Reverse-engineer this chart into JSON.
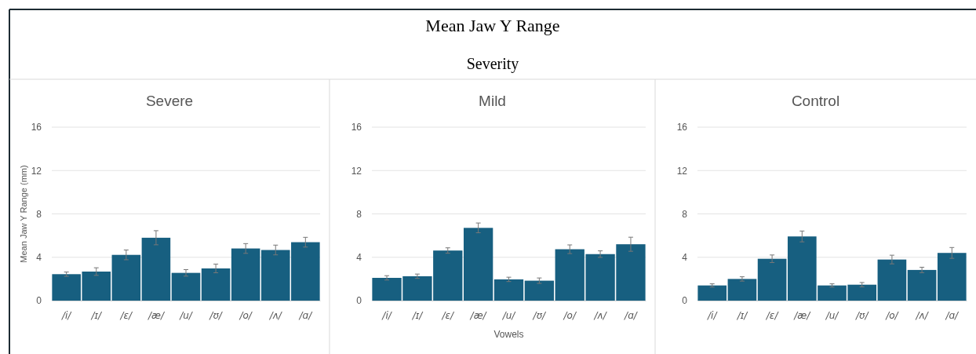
{
  "chart_data": [
    {
      "type": "other",
      "title": "Mean Jaw Y Range",
      "subtitle": "Severity"
    },
    {
      "type": "bar",
      "title": "Severe",
      "ylabel": "Mean Jaw Y Range (mm)",
      "categories": [
        "/i/",
        "/ɪ/",
        "/ɛ/",
        "/æ/",
        "/u/",
        "/ʊ/",
        "/o/",
        "/ʌ/",
        "/ɑ/"
      ],
      "color": "#175f80",
      "values": [
        2.44,
        2.68,
        4.22,
        5.8,
        2.56,
        2.97,
        4.81,
        4.67,
        5.39
      ],
      "errors": [
        0.2,
        0.35,
        0.45,
        0.65,
        0.3,
        0.4,
        0.45,
        0.45,
        0.45
      ],
      "ylim": [
        0,
        16
      ],
      "yticks": [
        0,
        4,
        8,
        12,
        16
      ],
      "grid": "y"
    },
    {
      "type": "bar",
      "title": "Mild",
      "xlabel": "Vowels",
      "categories": [
        "/i/",
        "/ɪ/",
        "/ɛ/",
        "/æ/",
        "/u/",
        "/ʊ/",
        "/o/",
        "/ʌ/",
        "/ɑ/"
      ],
      "color": "#175f80",
      "values": [
        2.1,
        2.25,
        4.62,
        6.71,
        1.96,
        1.84,
        4.74,
        4.29,
        5.2
      ],
      "errors": [
        0.2,
        0.2,
        0.25,
        0.45,
        0.2,
        0.25,
        0.4,
        0.3,
        0.65
      ],
      "ylim": [
        0,
        16
      ],
      "yticks": [
        0,
        4,
        8,
        12,
        16
      ],
      "grid": "y"
    },
    {
      "type": "bar",
      "title": "Control",
      "categories": [
        "/i/",
        "/ɪ/",
        "/ɛ/",
        "/æ/",
        "/u/",
        "/ʊ/",
        "/o/",
        "/ʌ/",
        "/ɑ/"
      ],
      "color": "#175f80",
      "values": [
        1.4,
        2.0,
        3.86,
        5.92,
        1.4,
        1.47,
        3.79,
        2.83,
        4.4
      ],
      "errors": [
        0.15,
        0.2,
        0.35,
        0.5,
        0.15,
        0.2,
        0.4,
        0.25,
        0.5
      ],
      "ylim": [
        0,
        16
      ],
      "yticks": [
        0,
        4,
        8,
        12,
        16
      ],
      "grid": "y"
    }
  ]
}
